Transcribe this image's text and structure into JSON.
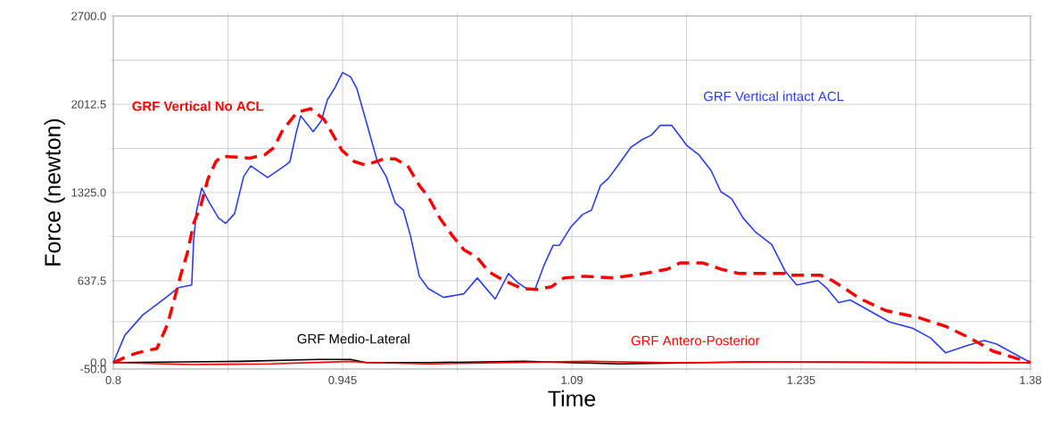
{
  "chart_data": {
    "type": "line",
    "xlabel": "Time",
    "ylabel": "Force (newton)",
    "xlim": [
      0.8,
      1.38
    ],
    "ylim": [
      -50,
      2700
    ],
    "xticks": [
      0.8,
      {
        "value": 0.8725,
        "label": null
      },
      0.945,
      {
        "value": 1.0175,
        "label": null
      },
      1.09,
      {
        "value": 1.1625,
        "label": null
      },
      1.235,
      {
        "value": 1.3075,
        "label": null
      },
      1.38
    ],
    "yticks": [
      {
        "value": -50,
        "label": "-50.0"
      },
      {
        "value": 0,
        "label": "0.0"
      },
      {
        "value": 318.75,
        "label": null
      },
      {
        "value": 637.5,
        "label": "637.5"
      },
      {
        "value": 981.25,
        "label": null
      },
      {
        "value": 1325,
        "label": "1325.0"
      },
      {
        "value": 1668.75,
        "label": null
      },
      {
        "value": 2012.5,
        "label": "2012.5"
      },
      {
        "value": 2356.25,
        "label": null
      },
      {
        "value": 2700,
        "label": "2700.0"
      }
    ],
    "grid": true,
    "series": [
      {
        "name": "GRF Vertical intact ACL",
        "color": "#2b3cf0",
        "line_style": "solid",
        "x": [
          0.8,
          0.8073,
          0.8186,
          0.8327,
          0.8412,
          0.8496,
          0.8508,
          0.8525,
          0.8559,
          0.8609,
          0.8666,
          0.8711,
          0.8767,
          0.8824,
          0.8869,
          0.8976,
          0.9089,
          0.9117,
          0.9157,
          0.9185,
          0.9264,
          0.9315,
          0.9354,
          0.9399,
          0.945,
          0.9501,
          0.954,
          0.9608,
          0.967,
          0.9726,
          0.9783,
          0.9834,
          0.9879,
          0.9935,
          0.9992,
          1.0088,
          1.0217,
          1.0302,
          1.0415,
          1.0499,
          1.0556,
          1.0612,
          1.0669,
          1.0725,
          1.0781,
          1.0821,
          1.0894,
          1.0968,
          1.1024,
          1.1081,
          1.1131,
          1.1193,
          1.1272,
          1.1346,
          1.1402,
          1.1459,
          1.1532,
          1.1628,
          1.1701,
          1.178,
          1.1842,
          1.191,
          1.1983,
          1.2062,
          1.2164,
          1.2248,
          1.2322,
          1.2457,
          1.2514,
          1.2587,
          1.266,
          1.2909,
          1.3055,
          1.3168,
          1.3264,
          1.3394,
          1.3507,
          1.3586,
          1.38
        ],
        "values": [
          0,
          213,
          371,
          501,
          584,
          604,
          948,
          1174,
          1360,
          1243,
          1126,
          1085,
          1161,
          1449,
          1532,
          1442,
          1538,
          1566,
          1793,
          1923,
          1799,
          1882,
          2047,
          2136,
          2260,
          2225,
          2136,
          1841,
          1566,
          1449,
          1243,
          1188,
          989,
          673,
          577,
          508,
          536,
          659,
          495,
          694,
          625,
          577,
          577,
          762,
          913,
          913,
          1058,
          1154,
          1188,
          1380,
          1435,
          1538,
          1676,
          1738,
          1772,
          1848,
          1848,
          1690,
          1621,
          1497,
          1332,
          1277,
          1126,
          1016,
          920,
          714,
          604,
          639,
          577,
          467,
          488,
          316,
          268,
          192,
          76,
          130,
          172,
          144,
          0
        ]
      },
      {
        "name": "GRF Vertical No ACL",
        "color": "#ff0000",
        "line_style": "dashed",
        "x": [
          0.8,
          0.81,
          0.8153,
          0.8276,
          0.8344,
          0.8389,
          0.8429,
          0.8468,
          0.8508,
          0.8553,
          0.8598,
          0.8649,
          0.8683,
          0.879,
          0.8864,
          0.896,
          0.9016,
          0.9072,
          0.9163,
          0.9247,
          0.9332,
          0.9371,
          0.9445,
          0.9524,
          0.9597,
          0.971,
          0.9783,
          0.9862,
          0.9935,
          0.9992,
          1.0065,
          1.0144,
          1.0217,
          1.0302,
          1.0375,
          1.0471,
          1.0584,
          1.068,
          1.077,
          1.0849,
          1.0978,
          1.1165,
          1.1357,
          1.1504,
          1.1583,
          1.173,
          1.1842,
          1.1955,
          1.2062,
          1.2243,
          1.2249,
          1.2474,
          1.2547,
          1.2627,
          1.2717,
          1.2886,
          1.3094,
          1.3264,
          1.3417,
          1.3563,
          1.38
        ],
        "values": [
          0,
          55,
          76,
          110,
          302,
          508,
          694,
          852,
          1085,
          1223,
          1429,
          1566,
          1607,
          1600,
          1593,
          1621,
          1676,
          1813,
          1951,
          1978,
          1896,
          1813,
          1655,
          1566,
          1538,
          1587,
          1587,
          1532,
          1380,
          1291,
          1126,
          989,
          879,
          817,
          707,
          639,
          577,
          570,
          590,
          659,
          673,
          659,
          694,
          728,
          776,
          776,
          728,
          694,
          694,
          694,
          680,
          680,
          639,
          577,
          501,
          405,
          350,
          282,
          192,
          89,
          0
        ]
      },
      {
        "name": "GRF Medio-Lateral",
        "color": "#000000",
        "line_style": "solid",
        "x": [
          0.8,
          0.88,
          0.93,
          0.95,
          0.96,
          1.0,
          1.06,
          1.12,
          1.2,
          1.3,
          1.38
        ],
        "values": [
          0,
          10,
          25,
          25,
          0,
          0,
          10,
          -10,
          5,
          0,
          0
        ]
      },
      {
        "name": "GRF Antero-Posterior",
        "color": "#ff0000",
        "line_style": "solid",
        "x": [
          0.8,
          0.85,
          0.9,
          0.95,
          0.96,
          1.0,
          1.1,
          1.15,
          1.25,
          1.38
        ],
        "values": [
          0,
          -15,
          -10,
          10,
          0,
          -10,
          10,
          0,
          5,
          0
        ]
      }
    ]
  }
}
